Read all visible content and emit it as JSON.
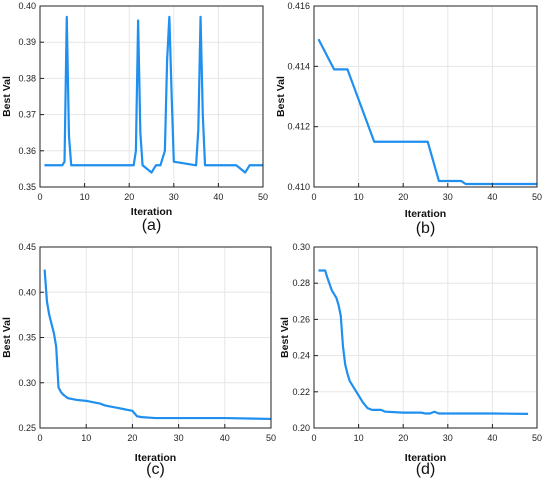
{
  "chart_data": [
    {
      "type": "line",
      "title": "",
      "panel_label": "(a)",
      "xlabel": "Iteration",
      "ylabel": "Best Val",
      "xlim": [
        0,
        50
      ],
      "ylim": [
        0.35,
        0.4
      ],
      "xticks": [
        "0",
        "10",
        "20",
        "30",
        "40",
        "50"
      ],
      "yticks": [
        "0.35",
        "0.36",
        "0.37",
        "0.38",
        "0.39",
        "0.40"
      ],
      "grid": true,
      "color": "#1f8ff0",
      "series": [
        {
          "x": [
            1,
            5,
            5.5,
            6,
            6.5,
            7,
            21,
            21.5,
            22,
            22.5,
            23,
            24,
            25,
            26,
            27,
            28,
            28.5,
            29,
            29.5,
            30,
            35,
            35.5,
            36,
            36.5,
            37,
            44,
            45,
            46,
            47,
            50
          ],
          "y": [
            0.356,
            0.356,
            0.357,
            0.397,
            0.364,
            0.356,
            0.356,
            0.36,
            0.396,
            0.365,
            0.356,
            0.355,
            0.354,
            0.356,
            0.356,
            0.36,
            0.385,
            0.397,
            0.376,
            0.357,
            0.356,
            0.366,
            0.397,
            0.37,
            0.356,
            0.356,
            0.355,
            0.354,
            0.356,
            0.356
          ]
        }
      ]
    },
    {
      "type": "line",
      "title": "",
      "panel_label": "(b)",
      "xlabel": "Iteration",
      "ylabel": "Best Val",
      "xlim": [
        0,
        50
      ],
      "ylim": [
        0.41,
        0.416
      ],
      "xticks": [
        "0",
        "10",
        "20",
        "30",
        "40",
        "50"
      ],
      "yticks": [
        "0.410",
        "0.412",
        "0.414",
        "0.416"
      ],
      "grid": true,
      "color": "#1f8ff0",
      "series": [
        {
          "x": [
            1,
            4.5,
            7.5,
            13.5,
            25.5,
            28,
            33,
            34,
            41,
            50
          ],
          "y": [
            0.4149,
            0.4139,
            0.4139,
            0.4115,
            0.4115,
            0.4102,
            0.4102,
            0.4101,
            0.4101,
            0.4101
          ]
        }
      ]
    },
    {
      "type": "line",
      "title": "",
      "panel_label": "(c)",
      "xlabel": "Iteration",
      "ylabel": "Best Val",
      "xlim": [
        0,
        50
      ],
      "ylim": [
        0.25,
        0.45
      ],
      "xticks": [
        "0",
        "10",
        "20",
        "30",
        "40",
        "50"
      ],
      "yticks": [
        "0.25",
        "0.30",
        "0.35",
        "0.40",
        "0.45"
      ],
      "grid": true,
      "color": "#1f8ff0",
      "series": [
        {
          "x": [
            1,
            1.5,
            2,
            2.5,
            3,
            3.5,
            4,
            4.5,
            5,
            6,
            7,
            8,
            10,
            12,
            13,
            14,
            15,
            16,
            17,
            18,
            19,
            20,
            21,
            22,
            25,
            30,
            40,
            50
          ],
          "y": [
            0.425,
            0.39,
            0.375,
            0.365,
            0.355,
            0.34,
            0.295,
            0.29,
            0.287,
            0.283,
            0.282,
            0.281,
            0.28,
            0.278,
            0.277,
            0.275,
            0.274,
            0.273,
            0.272,
            0.271,
            0.27,
            0.269,
            0.263,
            0.262,
            0.261,
            0.261,
            0.261,
            0.26
          ]
        }
      ]
    },
    {
      "type": "line",
      "title": "",
      "panel_label": "(d)",
      "xlabel": "Iteration",
      "ylabel": "Best Val",
      "xlim": [
        0,
        50
      ],
      "ylim": [
        0.2,
        0.3
      ],
      "xticks": [
        "0",
        "10",
        "20",
        "30",
        "40",
        "50"
      ],
      "yticks": [
        "0.20",
        "0.22",
        "0.24",
        "0.26",
        "0.28",
        "0.30"
      ],
      "grid": true,
      "color": "#1f8ff0",
      "series": [
        {
          "x": [
            1,
            2.5,
            3,
            4,
            5,
            5.5,
            6,
            6.5,
            7,
            7.5,
            8,
            9,
            10,
            11,
            12,
            13,
            15,
            16,
            20,
            24,
            25,
            26,
            27,
            28,
            30,
            40,
            48
          ],
          "y": [
            0.287,
            0.287,
            0.283,
            0.276,
            0.272,
            0.268,
            0.262,
            0.245,
            0.235,
            0.23,
            0.226,
            0.222,
            0.218,
            0.214,
            0.211,
            0.21,
            0.21,
            0.209,
            0.2085,
            0.2085,
            0.208,
            0.208,
            0.209,
            0.208,
            0.208,
            0.208,
            0.2078
          ]
        }
      ]
    }
  ]
}
